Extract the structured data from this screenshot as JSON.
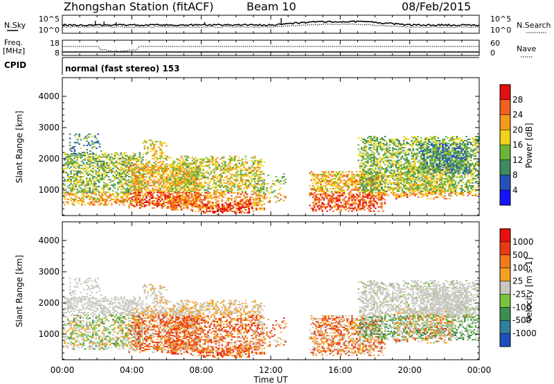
{
  "header": {
    "station": "Zhongshan Station (fitACF)",
    "beam": "Beam 10",
    "date": "08/Feb/2015"
  },
  "noise_panel": {
    "left_label": "N.Sky",
    "left_ticks": [
      "10^5",
      "10^0"
    ],
    "right_ticks": [
      "10^5",
      "10^0"
    ],
    "right_label": "N.Search"
  },
  "freq_panel": {
    "left_label_1": "Freq.",
    "left_label_2": "[MHz]",
    "left_ticks": [
      "18",
      "8"
    ],
    "right_ticks": [
      "60",
      "0"
    ],
    "right_label": "Nave"
  },
  "cpid": {
    "label": "CPID",
    "mode": "normal (fast stereo) 153"
  },
  "x_axis": {
    "label": "Time UT",
    "ticks": [
      "00:00",
      "04:00",
      "08:00",
      "12:00",
      "16:00",
      "20:00",
      "00:00"
    ]
  },
  "range_axis": {
    "label": "Slant Range [km]",
    "ticks": [
      "1000",
      "2000",
      "3000",
      "4000"
    ]
  },
  "power_scale": {
    "label": "Power [dB]",
    "ticks": [
      "4",
      "8",
      "12",
      "16",
      "20",
      "24",
      "28"
    ],
    "colors": [
      "#1414ff",
      "#2552b9",
      "#3f8a5f",
      "#6bb53a",
      "#f2d21c",
      "#f59a1a",
      "#f0601e",
      "#e01010"
    ]
  },
  "velocity_scale": {
    "label": "Velocity [m s-1]",
    "ticks": [
      "1000",
      "500",
      "100",
      "25",
      "-25",
      "-100",
      "-500",
      "-1000"
    ],
    "colors": [
      "#1f4fbf",
      "#2f7fa0",
      "#3b8f50",
      "#7cc33c",
      "#c8c8c0",
      "#f5a020",
      "#f07a1e",
      "#e83a14",
      "#e81010"
    ]
  },
  "chart_data": [
    {
      "type": "heatmap",
      "title": "Power",
      "xlabel": "Time UT",
      "ylabel": "Slant Range [km]",
      "x_range_hours": [
        0,
        24
      ],
      "ylim": [
        180,
        4600
      ],
      "colorbar_label": "Power [dB]",
      "colorbar_range": [
        0,
        30
      ]
    },
    {
      "type": "heatmap",
      "title": "Velocity",
      "xlabel": "Time UT",
      "ylabel": "Slant Range [km]",
      "x_range_hours": [
        0,
        24
      ],
      "ylim": [
        180,
        4600
      ],
      "colorbar_label": "Velocity [m s-1]",
      "colorbar_range": [
        -1000,
        1000
      ]
    }
  ]
}
